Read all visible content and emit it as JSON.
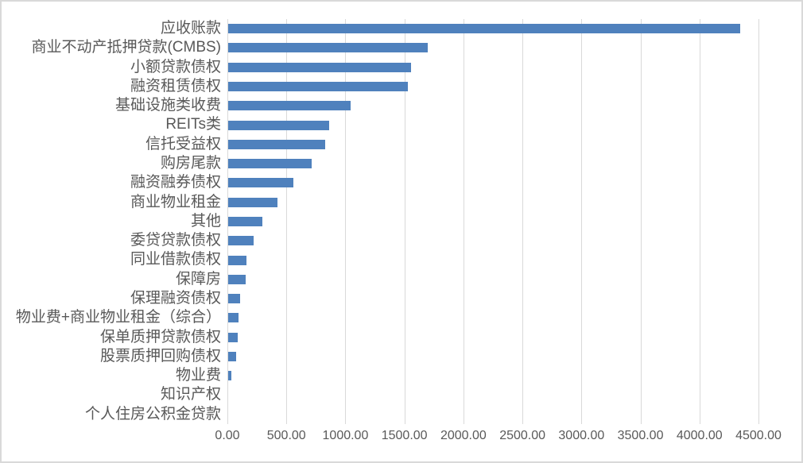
{
  "chart_data": {
    "type": "bar",
    "orientation": "horizontal",
    "title": "",
    "xlabel": "",
    "ylabel": "",
    "legend": "none",
    "grid": "vertical",
    "xlim": [
      0,
      4500
    ],
    "x_tick_labels": [
      "0.00",
      "500.00",
      "1000.00",
      "1500.00",
      "2000.00",
      "2500.00",
      "3000.00",
      "3500.00",
      "4000.00",
      "4500.00"
    ],
    "categories": [
      "应收账款",
      "商业不动产抵押贷款(CMBS)",
      "小额贷款债权",
      "融资租赁债权",
      "基础设施类收费",
      "REITs类",
      "信托受益权",
      "购房尾款",
      "融资融券债权",
      "商业物业租金",
      "其他",
      "委贷贷款债权",
      "同业借款债权",
      "保障房",
      "保理融资债权",
      "物业费+商业物业租金（综合）",
      "保单质押贷款债权",
      "股票质押回购债权",
      "物业费",
      "知识产权",
      "个人住房公积金贷款"
    ],
    "values": [
      4340,
      1690,
      1550,
      1525,
      1035,
      855,
      820,
      705,
      550,
      415,
      290,
      215,
      158,
      145,
      104,
      86,
      84,
      66,
      28,
      0,
      0
    ],
    "colors": {
      "bar": "#4f81bd",
      "gridline": "#d9d9d9",
      "axis_text": "#595959",
      "background": "#ffffff",
      "frame_border": "#d9d9d9"
    }
  }
}
